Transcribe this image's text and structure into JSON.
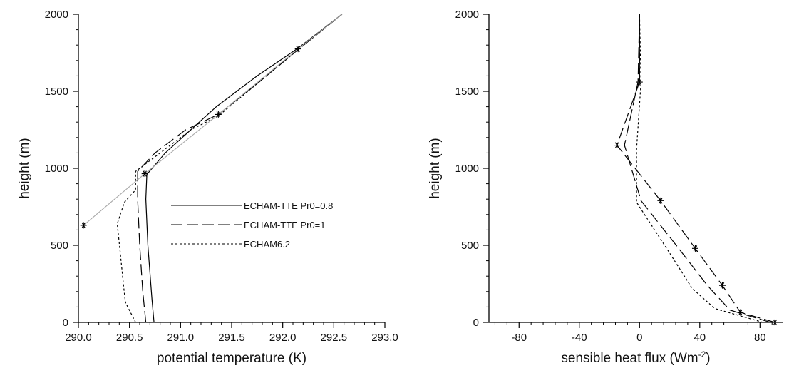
{
  "chart_data": [
    {
      "type": "line",
      "xlabel": "potential temperature (K)",
      "ylabel": "height (m)",
      "xlim": [
        290.0,
        293.0
      ],
      "ylim": [
        0,
        2000
      ],
      "xticks": [
        "290.0",
        "290.5",
        "291.0",
        "291.5",
        "292.0",
        "292.5",
        "293.0"
      ],
      "yticks": [
        "0",
        "500",
        "1000",
        "1500",
        "2000"
      ],
      "grid": false,
      "legend_position": "center-right",
      "series": [
        {
          "name": "ECHAM-TTE Pr0=0.8",
          "style": "solid",
          "color": "#000000",
          "x": [
            290.74,
            290.72,
            290.68,
            290.66,
            290.67,
            290.85,
            291.1,
            291.35,
            291.75,
            292.15,
            292.58
          ],
          "y": [
            0,
            150,
            500,
            800,
            960,
            1100,
            1250,
            1400,
            1600,
            1780,
            2000
          ]
        },
        {
          "name": "ECHAM-TTE Pr0=1",
          "style": "dashed",
          "color": "#000000",
          "x": [
            290.66,
            290.63,
            290.6,
            290.58,
            290.58,
            290.75,
            291.05,
            291.37,
            291.75,
            292.15,
            292.58
          ],
          "y": [
            0,
            200,
            500,
            800,
            980,
            1100,
            1250,
            1350,
            1550,
            1770,
            2000
          ]
        },
        {
          "name": "ECHAM6.2",
          "style": "dotted",
          "color": "#000000",
          "x": [
            290.56,
            290.46,
            290.44,
            290.41,
            290.38,
            290.45,
            290.56,
            290.56,
            290.8,
            291.1,
            291.37,
            291.75,
            292.15,
            292.58
          ],
          "y": [
            0,
            130,
            250,
            450,
            640,
            780,
            860,
            980,
            1100,
            1250,
            1340,
            1550,
            1770,
            2000
          ]
        },
        {
          "name": "",
          "style": "solid",
          "color": "#aaaaaa",
          "marker": "star",
          "markers_x": [
            290.05,
            290.65,
            291.37,
            292.15
          ],
          "markers_y": [
            630,
            965,
            1350,
            1775
          ],
          "x": [
            290.05,
            290.65,
            291.37,
            292.15,
            292.58
          ],
          "y": [
            630,
            965,
            1350,
            1775,
            2000
          ]
        }
      ]
    },
    {
      "type": "line",
      "xlabel": "sensible heat flux (Wm",
      "xlabel_sup": "-2",
      "xlabel_end": ")",
      "ylabel": "height (m)",
      "xlim": [
        -100,
        95
      ],
      "ylim": [
        0,
        2000
      ],
      "xticks": [
        "-80",
        "-40",
        "0",
        "40",
        "80"
      ],
      "xtick_values": [
        -80,
        -40,
        0,
        40,
        80
      ],
      "yticks": [
        "0",
        "500",
        "1000",
        "1500",
        "2000"
      ],
      "grid": false,
      "series": [
        {
          "name": "ECHAM-TTE Pr0=0.8",
          "style": "solid",
          "color": "#000000",
          "x": [
            0,
            0
          ],
          "y": [
            1560,
            2000
          ]
        },
        {
          "name": "ECHAM-TTE Pr0=1",
          "style": "dashed",
          "color": "#000000",
          "x": [
            87,
            60,
            45,
            26,
            1,
            -10,
            -1,
            0
          ],
          "y": [
            0,
            80,
            240,
            480,
            790,
            1150,
            1560,
            2000
          ]
        },
        {
          "name": "ECHAM6.2",
          "style": "dotted",
          "color": "#000000",
          "x": [
            82,
            50,
            35,
            20,
            -2,
            -2,
            1,
            0
          ],
          "y": [
            0,
            90,
            220,
            450,
            780,
            1120,
            1560,
            2000
          ]
        },
        {
          "name": "",
          "style": "dashed",
          "color": "#000000",
          "marker": "star",
          "markers_x": [
            90,
            67,
            55,
            37,
            14,
            -15,
            0
          ],
          "markers_y": [
            0,
            65,
            240,
            480,
            790,
            1150,
            1560
          ],
          "x": [
            90,
            67,
            55,
            37,
            14,
            -15,
            0,
            0
          ],
          "y": [
            0,
            65,
            240,
            480,
            790,
            1150,
            1560,
            2000
          ]
        }
      ]
    }
  ]
}
